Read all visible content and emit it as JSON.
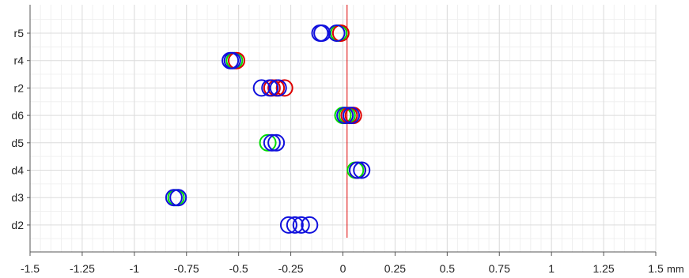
{
  "chart_data": {
    "type": "scatter",
    "x_unit": "mm",
    "xlim": [
      -1.5,
      1.5
    ],
    "x_ticks": [
      "-1.5",
      "-1.25",
      "-1",
      "-0.75",
      "-0.5",
      "-0.25",
      "0",
      "0.25",
      "0.5",
      "0.75",
      "1",
      "1.25",
      "1.5"
    ],
    "categories": [
      "r5",
      "r4",
      "r2",
      "d6",
      "d5",
      "d4",
      "d3",
      "d2"
    ],
    "grid": true,
    "reference_line_x": 0.02,
    "series": [
      {
        "color": "#00dd00",
        "points": [
          {
            "cat": "r5",
            "x": -0.02
          },
          {
            "cat": "r4",
            "x": -0.52
          },
          {
            "cat": "d6",
            "x": 0.0
          },
          {
            "cat": "d6",
            "x": 0.02
          },
          {
            "cat": "d5",
            "x": -0.36
          },
          {
            "cat": "d4",
            "x": 0.06
          },
          {
            "cat": "d3",
            "x": -0.8
          }
        ]
      },
      {
        "color": "#dd0000",
        "points": [
          {
            "cat": "r5",
            "x": -0.01
          },
          {
            "cat": "r4",
            "x": -0.51
          },
          {
            "cat": "r2",
            "x": -0.34
          },
          {
            "cat": "r2",
            "x": -0.32
          },
          {
            "cat": "r2",
            "x": -0.28
          },
          {
            "cat": "d6",
            "x": 0.03
          },
          {
            "cat": "d6",
            "x": 0.05
          },
          {
            "cat": "d4",
            "x": 0.07
          }
        ]
      },
      {
        "color": "#1010dd",
        "points": [
          {
            "cat": "r5",
            "x": -0.11
          },
          {
            "cat": "r5",
            "x": -0.1
          },
          {
            "cat": "r5",
            "x": -0.03
          },
          {
            "cat": "r4",
            "x": -0.54
          },
          {
            "cat": "r4",
            "x": -0.53
          },
          {
            "cat": "r2",
            "x": -0.39
          },
          {
            "cat": "r2",
            "x": -0.35
          },
          {
            "cat": "r2",
            "x": -0.31
          },
          {
            "cat": "d6",
            "x": 0.01
          },
          {
            "cat": "d6",
            "x": 0.04
          },
          {
            "cat": "d5",
            "x": -0.34
          },
          {
            "cat": "d5",
            "x": -0.32
          },
          {
            "cat": "d4",
            "x": 0.07
          },
          {
            "cat": "d4",
            "x": 0.09
          },
          {
            "cat": "d3",
            "x": -0.81
          },
          {
            "cat": "d3",
            "x": -0.79
          },
          {
            "cat": "d2",
            "x": -0.26
          },
          {
            "cat": "d2",
            "x": -0.23
          },
          {
            "cat": "d2",
            "x": -0.2
          },
          {
            "cat": "d2",
            "x": -0.16
          }
        ]
      }
    ]
  }
}
